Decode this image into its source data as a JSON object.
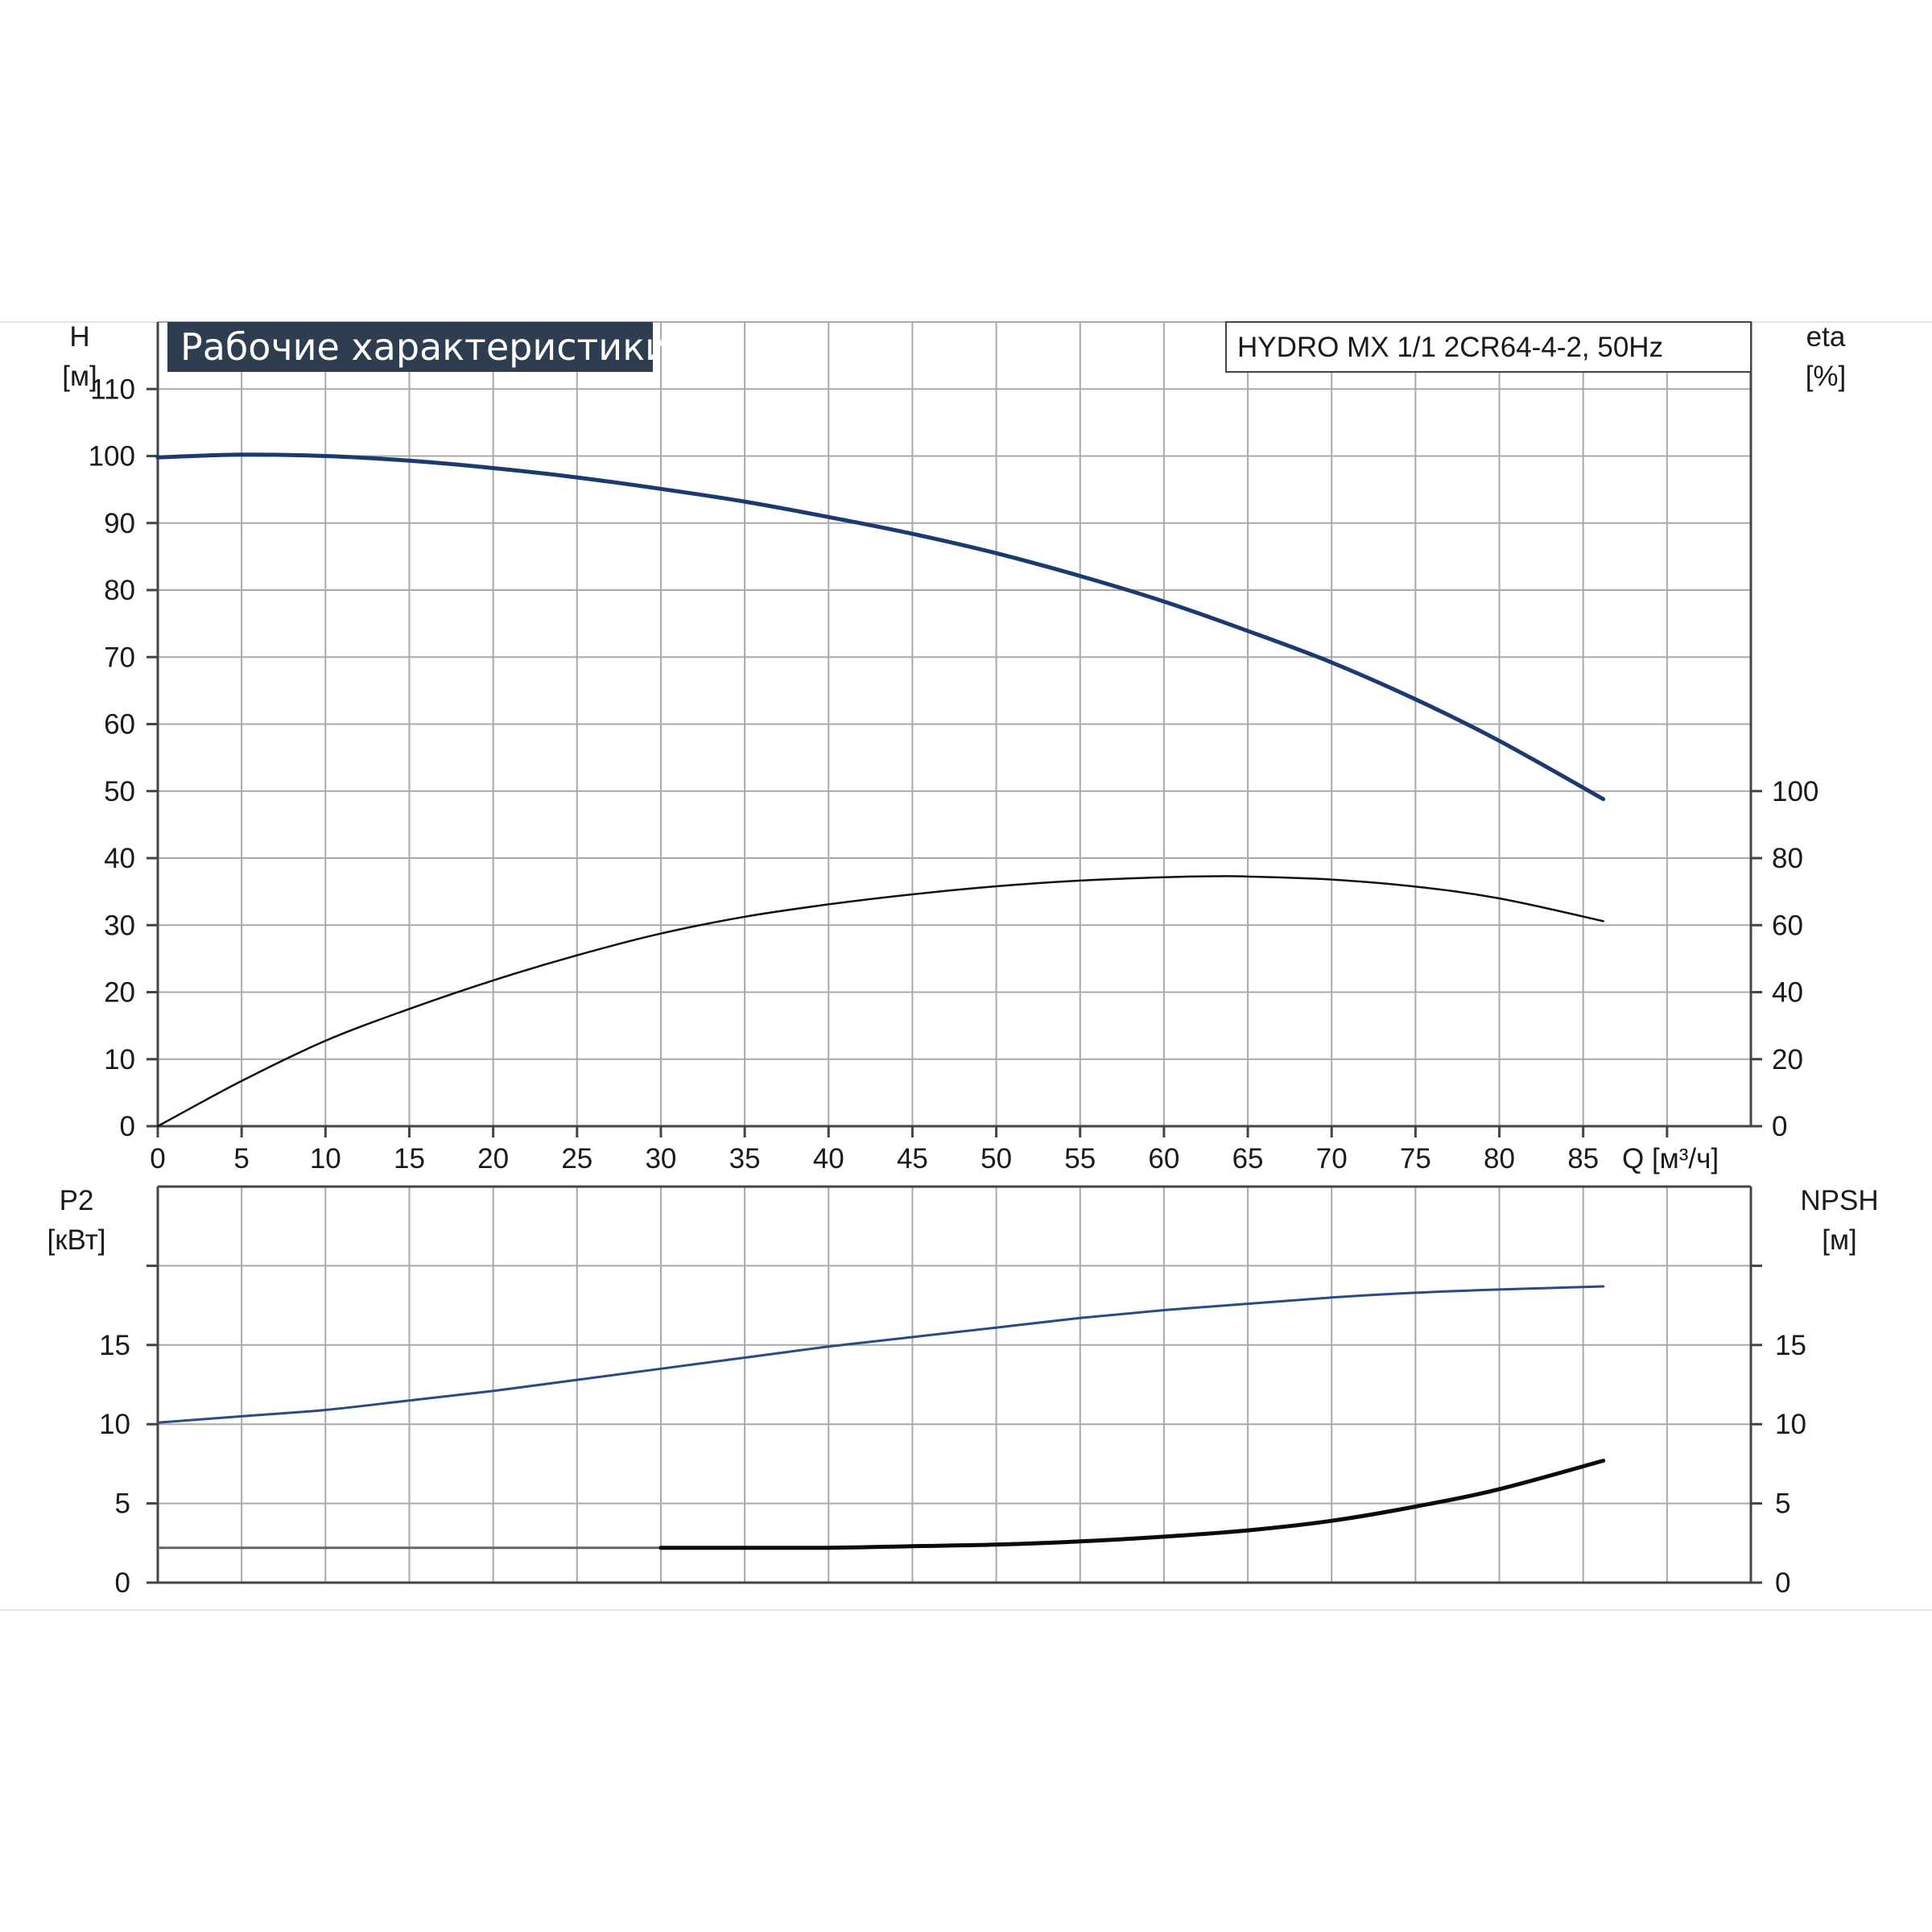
{
  "colors": {
    "grid": "#a9a9a9",
    "frame": "#444444",
    "page_border": "#e2e2e2",
    "title_bg": "#2e3d50",
    "head_curve": "#1d3a70",
    "eta_curve": "#111111",
    "power_curve": "#2a4a85",
    "npsh_curve": "#0b0b0b",
    "npsh_flat": "#666666"
  },
  "chart_data": [
    {
      "type": "line",
      "title": "Рабочие характеристики",
      "subtitle": "HYDRO MX 1/1 2CR64-4-2, 50Hz",
      "x_ticks": [
        "0",
        "5",
        "10",
        "15",
        "20",
        "25",
        "30",
        "35",
        "40",
        "45",
        "50",
        "55",
        "60",
        "65",
        "70",
        "75",
        "80",
        "85"
      ],
      "xlabel": "Q [м³/ч]",
      "xlim": [
        0,
        95
      ],
      "ylabel_left": [
        "H",
        "[м]"
      ],
      "ylabel_right": [
        "eta",
        "[%]"
      ],
      "ylim_left": [
        0,
        120
      ],
      "ylim_right": [
        0,
        240
      ],
      "yticks_left": [
        "0",
        "10",
        "20",
        "30",
        "40",
        "50",
        "60",
        "70",
        "80",
        "90",
        "100",
        "110"
      ],
      "yticks_right": [
        "0",
        "20",
        "40",
        "60",
        "80",
        "100"
      ],
      "grid": true,
      "series": [
        {
          "axis": "left",
          "x": [
            0,
            5,
            10,
            15,
            20,
            25,
            30,
            35,
            40,
            45,
            50,
            55,
            60,
            65,
            70,
            75,
            80,
            86.2
          ],
          "values": [
            99.8,
            100.2,
            100.0,
            99.3,
            98.2,
            96.8,
            95.1,
            93.2,
            90.9,
            88.4,
            85.5,
            82.1,
            78.3,
            73.9,
            69.2,
            63.7,
            57.5,
            48.8
          ]
        },
        {
          "axis": "right",
          "x": [
            0,
            5,
            10,
            15,
            20,
            25,
            30,
            35,
            40,
            45,
            50,
            55,
            60,
            63,
            65,
            70,
            75,
            80,
            86.2
          ],
          "values": [
            0,
            13.5,
            25.5,
            35.0,
            43.5,
            51.0,
            57.5,
            62.5,
            66.2,
            69.2,
            71.6,
            73.3,
            74.3,
            74.6,
            74.5,
            73.6,
            71.5,
            68.0,
            61.2
          ]
        }
      ]
    },
    {
      "type": "line",
      "ylabel_left": [
        "P2",
        "[кВт]"
      ],
      "ylabel_right": [
        "NPSH",
        "[м]"
      ],
      "xlim": [
        0,
        95
      ],
      "ylim_left": [
        0,
        25
      ],
      "ylim_right": [
        0,
        25
      ],
      "yticks_left": [
        "0",
        "5",
        "10",
        "15"
      ],
      "yticks_right": [
        "0",
        "5",
        "10",
        "15"
      ],
      "grid": true,
      "series": [
        {
          "axis": "left",
          "x": [
            0,
            5,
            10,
            15,
            20,
            25,
            30,
            35,
            40,
            45,
            50,
            55,
            60,
            65,
            70,
            75,
            80,
            86.2
          ],
          "values": [
            10.1,
            10.5,
            10.9,
            11.5,
            12.1,
            12.8,
            13.5,
            14.2,
            14.9,
            15.5,
            16.1,
            16.7,
            17.2,
            17.6,
            18.0,
            18.3,
            18.5,
            18.7
          ]
        },
        {
          "axis": "right",
          "x": [
            0,
            30
          ],
          "values": [
            2.2,
            2.2
          ]
        },
        {
          "axis": "right",
          "x": [
            30,
            35,
            40,
            45,
            50,
            55,
            60,
            65,
            70,
            75,
            80,
            86.2
          ],
          "values": [
            2.2,
            2.2,
            2.2,
            2.3,
            2.4,
            2.6,
            2.9,
            3.3,
            3.9,
            4.8,
            5.9,
            7.7
          ]
        }
      ]
    }
  ]
}
